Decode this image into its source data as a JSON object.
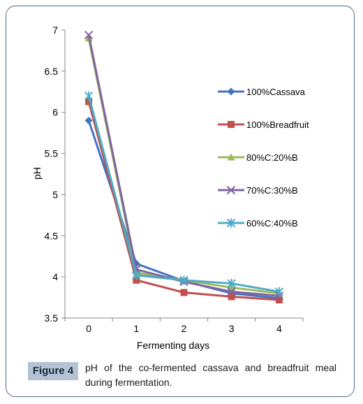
{
  "figure": {
    "label": "Figure 4",
    "caption": "pH of the co-fermented cassava and breadfruit meal during fermentation."
  },
  "chart_data": {
    "type": "line",
    "title": "",
    "xlabel": "Fermenting days",
    "ylabel": "pH",
    "x": [
      0,
      1,
      2,
      3,
      4
    ],
    "ylim": [
      3.5,
      7
    ],
    "yticks": [
      3.5,
      4,
      4.5,
      5,
      5.5,
      6,
      6.5,
      7
    ],
    "ytick_labels": [
      "3.5",
      "4",
      "4.5",
      "5",
      "5.5",
      "6",
      "6.5",
      "7"
    ],
    "xtick_labels": [
      "0",
      "1",
      "2",
      "3",
      "4"
    ],
    "grid": false,
    "legend_position": "right",
    "series": [
      {
        "name": "100%Cassava",
        "color": "#4472c4",
        "marker": "diamond",
        "values": [
          5.9,
          4.16,
          3.95,
          3.8,
          3.74
        ]
      },
      {
        "name": "100%Breadfruit",
        "color": "#c0504d",
        "marker": "square",
        "values": [
          6.13,
          3.96,
          3.81,
          3.76,
          3.72
        ]
      },
      {
        "name": "80%C:20%B",
        "color": "#9bbb59",
        "marker": "triangle",
        "values": [
          6.9,
          4.05,
          3.96,
          3.87,
          3.8
        ]
      },
      {
        "name": "70%C:30%B",
        "color": "#8064a2",
        "marker": "x",
        "values": [
          6.94,
          4.09,
          3.94,
          3.82,
          3.77
        ]
      },
      {
        "name": "60%C:40%B",
        "color": "#4bacc6",
        "marker": "star",
        "values": [
          6.2,
          4.02,
          3.96,
          3.92,
          3.82
        ]
      }
    ]
  }
}
